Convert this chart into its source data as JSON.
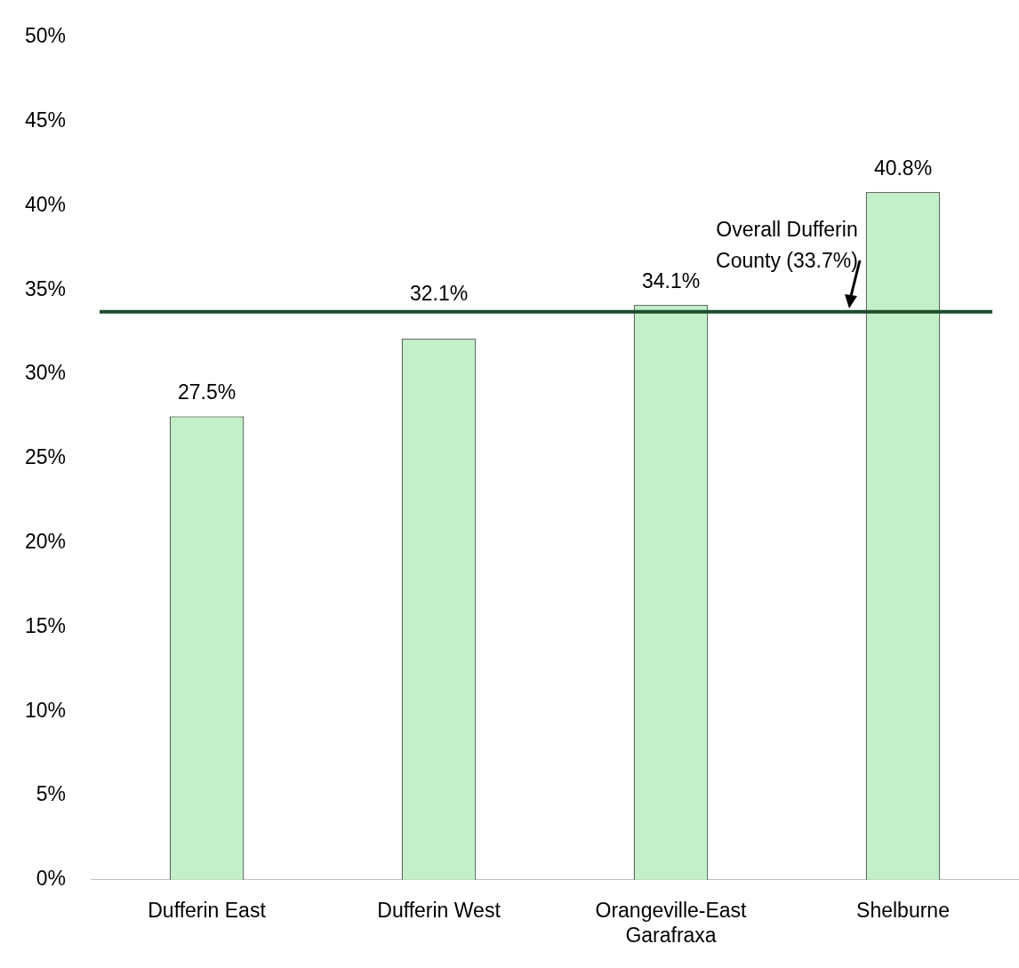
{
  "chart_data": {
    "type": "bar",
    "categories": [
      "Dufferin East",
      "Dufferin West",
      "Orangeville-East Garafraxa",
      "Shelburne"
    ],
    "values": [
      27.5,
      32.1,
      34.1,
      40.8
    ],
    "value_labels": [
      "27.5%",
      "32.1%",
      "34.1%",
      "40.8%"
    ],
    "color": "#c3f0c8",
    "ylim": [
      0,
      50
    ],
    "yticks": [
      {
        "value": 0,
        "label": "0%"
      },
      {
        "value": 5,
        "label": "5%"
      },
      {
        "value": 10,
        "label": "10%"
      },
      {
        "value": 15,
        "label": "15%"
      },
      {
        "value": 20,
        "label": "20%"
      },
      {
        "value": 25,
        "label": "25%"
      },
      {
        "value": 30,
        "label": "30%"
      },
      {
        "value": 35,
        "label": "35%"
      },
      {
        "value": 40,
        "label": "40%"
      },
      {
        "value": 45,
        "label": "45%"
      },
      {
        "value": 50,
        "label": "50%"
      }
    ],
    "ref_lines": [
      {
        "axis": "y",
        "value": 33.7,
        "label": "Overall Dufferin County (33.7%)",
        "color": "#1e4d2b"
      }
    ],
    "grid": false,
    "legend": false
  }
}
